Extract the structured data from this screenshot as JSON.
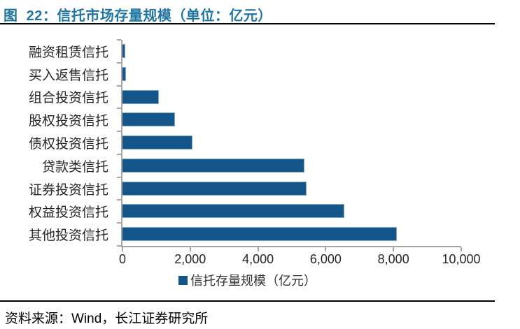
{
  "header": {
    "title": "图  22：信托市场存量规模（单位：亿元）"
  },
  "chart_data": {
    "type": "bar",
    "orientation": "horizontal",
    "title": "图 22：信托市场存量规模（单位：亿元）",
    "categories": [
      "融资租赁信托",
      "买入返售信托",
      "组合投资信托",
      "股权投资信托",
      "债权投资信托",
      "贷款类信托",
      "证券投资信托",
      "权益投资信托",
      "其他投资信托"
    ],
    "values": [
      90,
      100,
      1080,
      1550,
      2070,
      5370,
      5430,
      6550,
      8100
    ],
    "series_name": "信托存量规模（亿元）",
    "xlabel": "",
    "ylabel": "",
    "xlim": [
      0,
      10000
    ],
    "x_ticks": [
      0,
      2000,
      4000,
      6000,
      8000,
      10000
    ],
    "x_tick_labels": [
      "0",
      "2,000",
      "4,000",
      "6,000",
      "8,000",
      "10,000"
    ],
    "grid": false,
    "legend_position": "bottom",
    "bar_color": "#15568A",
    "bar_edge_color": "#7FA9C9",
    "axis_color": "#A6A6A6"
  },
  "footer": {
    "source": "资料来源：Wind，长江证券研究所"
  },
  "colors": {
    "title": "#1F76A4",
    "rule": "#000000",
    "text": "#262626"
  }
}
